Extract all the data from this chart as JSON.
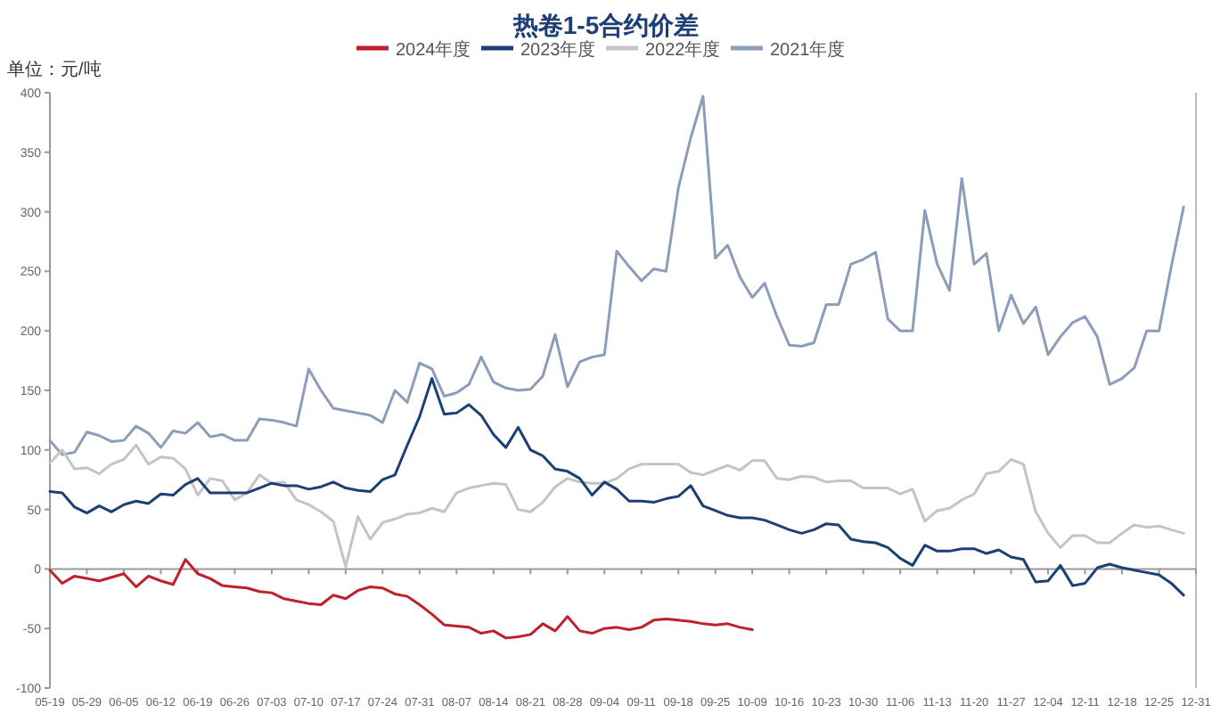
{
  "chart_data": {
    "type": "line",
    "title": "热卷1-5合约价差",
    "ylabel": "单位：元/吨",
    "legend": "top",
    "line_style": "solid",
    "ylim": [
      -100,
      400
    ],
    "yticks": [
      -100,
      -50,
      0,
      50,
      100,
      150,
      200,
      250,
      300,
      350,
      400
    ],
    "categories": [
      "05-19",
      null,
      null,
      "05-29",
      null,
      null,
      "06-05",
      null,
      null,
      "06-12",
      null,
      null,
      "06-19",
      null,
      null,
      "06-26",
      null,
      null,
      "07-03",
      null,
      null,
      "07-10",
      null,
      null,
      "07-17",
      null,
      null,
      "07-24",
      null,
      null,
      "07-31",
      null,
      null,
      "08-07",
      null,
      null,
      "08-14",
      null,
      null,
      "08-21",
      null,
      null,
      "08-28",
      null,
      null,
      "09-04",
      null,
      null,
      "09-11",
      null,
      null,
      "09-18",
      null,
      null,
      "09-25",
      null,
      null,
      "10-09",
      null,
      null,
      "10-16",
      null,
      null,
      "10-23",
      null,
      null,
      "10-30",
      null,
      null,
      "11-06",
      null,
      null,
      "11-13",
      null,
      null,
      "11-20",
      null,
      null,
      "11-27",
      null,
      null,
      "12-04",
      null,
      null,
      "12-11",
      null,
      null,
      "12-18",
      null,
      null,
      "12-25",
      null,
      null,
      "12-31"
    ],
    "series": [
      {
        "name": "2024年度",
        "color": "#c0202a",
        "values": [
          -1,
          -12,
          -6,
          -8,
          -10,
          -7,
          -4,
          -15,
          -6,
          -10,
          -13,
          8,
          -4,
          -8,
          -14,
          -15,
          -16,
          -19,
          -20,
          -25,
          -27,
          -29,
          -30,
          -22,
          -25,
          -18,
          -15,
          -16,
          -21,
          -23,
          -30,
          -38,
          -47,
          -48,
          -49,
          -54,
          -52,
          -58,
          -57,
          -55,
          -46,
          -52,
          -40,
          -52,
          -54,
          -50,
          -49,
          -51,
          -49,
          -43,
          -42,
          -43,
          -44,
          -46,
          -47,
          -46,
          -49,
          -51,
          null,
          null,
          null,
          null,
          null,
          null,
          null,
          null,
          null,
          null,
          null,
          null,
          null,
          null,
          null,
          null,
          null,
          null,
          null,
          null,
          null,
          null,
          null,
          null,
          null,
          null,
          null,
          null,
          null,
          null,
          null,
          null,
          null,
          null,
          null,
          null
        ]
      },
      {
        "name": "2023年度",
        "color": "#1c3f75",
        "values": [
          65,
          64,
          52,
          47,
          53,
          48,
          54,
          57,
          55,
          63,
          62,
          71,
          76,
          64,
          64,
          64,
          64,
          68,
          72,
          70,
          70,
          67,
          69,
          73,
          68,
          66,
          65,
          75,
          79,
          104,
          128,
          160,
          130,
          131,
          138,
          129,
          113,
          102,
          119,
          100,
          95,
          84,
          82,
          76,
          62,
          73,
          67,
          57,
          57,
          56,
          59,
          61,
          70,
          53,
          49,
          45,
          43,
          43,
          41,
          37,
          33,
          30,
          33,
          38,
          37,
          25,
          23,
          22,
          18,
          9,
          3,
          20,
          15,
          15,
          17,
          17,
          13,
          16,
          10,
          8,
          -11,
          -10,
          3,
          -14,
          -12,
          1,
          4,
          1,
          -1,
          -3,
          -5,
          -12,
          -22,
          null
        ]
      },
      {
        "name": "2022年度",
        "color": "#c4c4c4",
        "values": [
          89,
          100,
          84,
          85,
          80,
          88,
          92,
          104,
          88,
          94,
          93,
          84,
          62,
          76,
          74,
          58,
          64,
          79,
          72,
          73,
          58,
          54,
          48,
          40,
          2,
          44,
          25,
          39,
          42,
          46,
          47,
          51,
          48,
          64,
          68,
          70,
          72,
          71,
          50,
          48,
          56,
          69,
          76,
          73,
          72,
          72,
          76,
          84,
          88,
          88,
          88,
          88,
          81,
          79,
          83,
          87,
          83,
          91,
          91,
          76,
          75,
          78,
          77,
          73,
          74,
          74,
          68,
          68,
          68,
          63,
          67,
          40,
          49,
          51,
          58,
          63,
          80,
          82,
          92,
          88,
          48,
          30,
          18,
          28,
          28,
          22,
          22,
          30,
          37,
          35,
          36,
          33,
          30,
          null
        ]
      },
      {
        "name": "2021年度",
        "color": "#8b9dba",
        "values": [
          108,
          96,
          98,
          115,
          112,
          107,
          108,
          120,
          114,
          102,
          116,
          114,
          123,
          111,
          113,
          108,
          108,
          126,
          125,
          123,
          120,
          168,
          150,
          135,
          133,
          131,
          129,
          123,
          150,
          140,
          173,
          168,
          145,
          148,
          155,
          178,
          157,
          152,
          150,
          151,
          162,
          197,
          153,
          174,
          178,
          180,
          267,
          254,
          242,
          252,
          250,
          320,
          362,
          397,
          261,
          272,
          245,
          228,
          240,
          212,
          188,
          187,
          190,
          222,
          222,
          256,
          260,
          266,
          210,
          200,
          200,
          301,
          256,
          234,
          328,
          256,
          265,
          200,
          230,
          206,
          220,
          180,
          195,
          207,
          212,
          195,
          155,
          160,
          169,
          200,
          200,
          254,
          304,
          null
        ]
      }
    ]
  }
}
